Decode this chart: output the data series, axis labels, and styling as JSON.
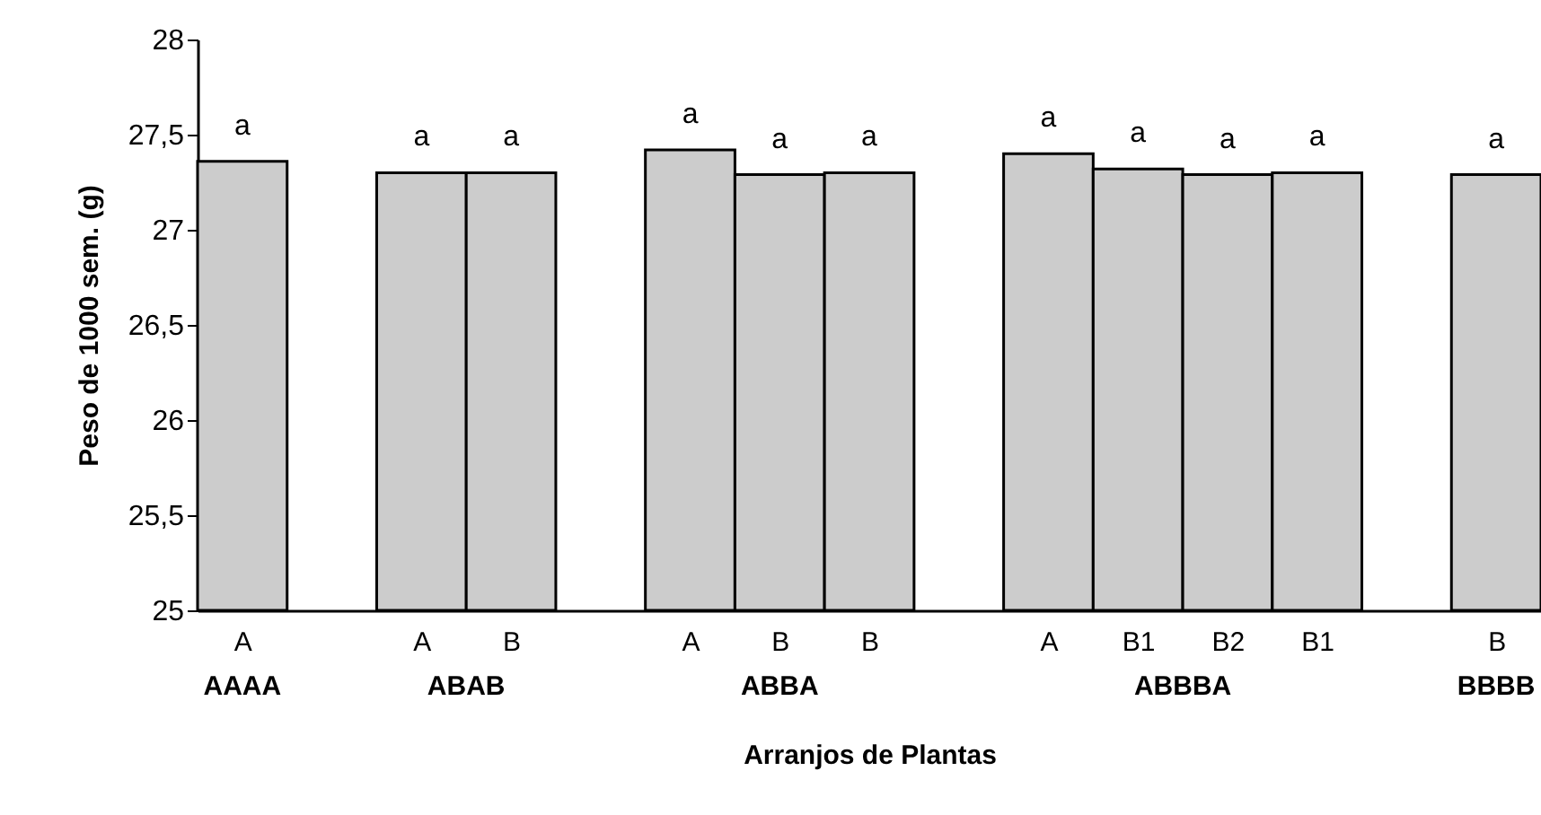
{
  "chart_data": {
    "type": "bar",
    "xlabel": "Arranjos de Plantas",
    "ylabel": "Peso de 1000 sem. (g)",
    "categories": [
      "A",
      null,
      "A",
      "B",
      null,
      "A",
      "B",
      "B",
      null,
      "A",
      "B1",
      "B2",
      "B1",
      null,
      "B"
    ],
    "values": [
      27.36,
      null,
      27.3,
      27.3,
      null,
      27.42,
      27.29,
      27.3,
      null,
      27.4,
      27.32,
      27.29,
      27.3,
      null,
      27.29
    ],
    "value_labels": [
      "a",
      null,
      "a",
      "a",
      null,
      "a",
      "a",
      "a",
      null,
      "a",
      "a",
      "a",
      "a",
      null,
      "a"
    ],
    "color": "#cccccc",
    "ylim": [
      25,
      28
    ],
    "yticks": [
      25,
      {
        "value": 25.5,
        "label": "25,5"
      },
      26,
      {
        "value": 26.5,
        "label": "26,5"
      },
      27,
      {
        "value": 27.5,
        "label": "27,5"
      },
      28
    ],
    "annotations": [
      "AAAA",
      "ABAB",
      "ABBA",
      "ABBBA",
      "BBBB"
    ],
    "grid": false,
    "legend": false
  }
}
